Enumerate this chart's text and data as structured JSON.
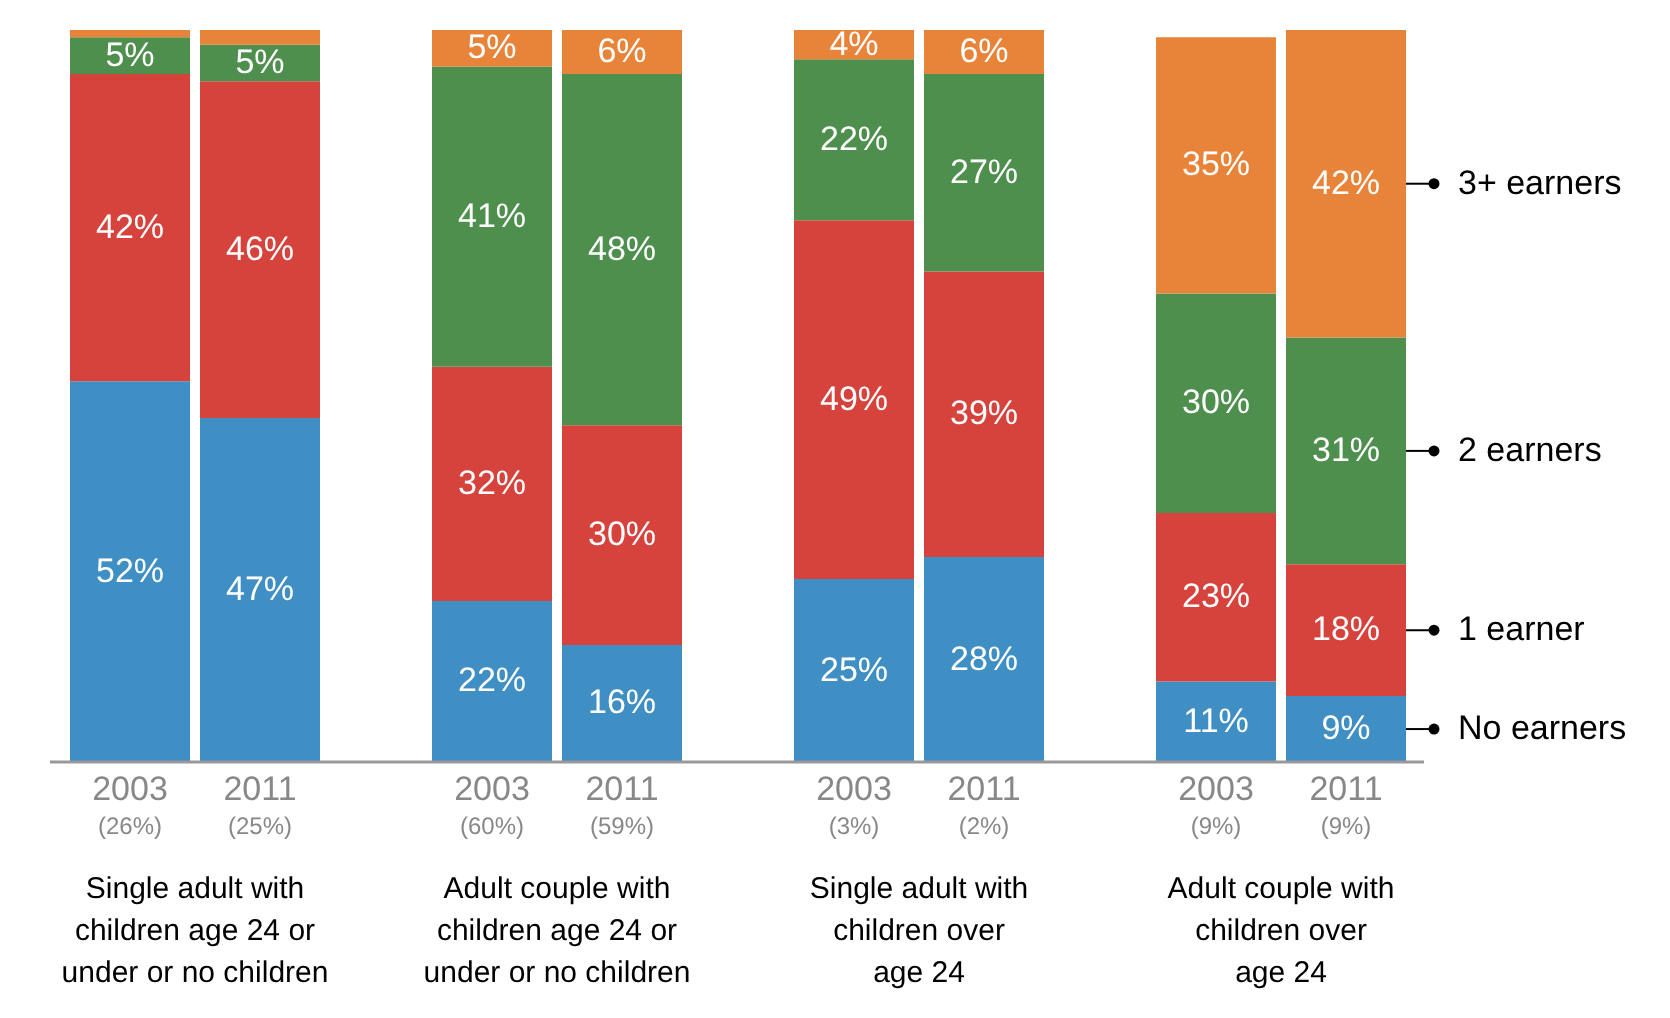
{
  "chart_data": {
    "type": "bar",
    "stacked": true,
    "categories": [
      "2003\n(26%)",
      "2011\n(25%)",
      "2003\n(60%)",
      "2011\n(59%)",
      "2003\n(3%)",
      "2011\n(2%)",
      "2003\n(9%)",
      "2011\n(9%)"
    ],
    "series": [
      {
        "name": "No earners",
        "color": "#3f8fc4",
        "values": [
          52,
          47,
          22,
          16,
          25,
          28,
          11,
          9
        ],
        "value_labels": [
          "52%",
          "47%",
          "22%",
          "16%",
          "25%",
          "28%",
          "11%",
          "9%"
        ]
      },
      {
        "name": "1 earner",
        "color": "#d6433d",
        "values": [
          42,
          46,
          32,
          30,
          49,
          39,
          23,
          18
        ],
        "value_labels": [
          "42%",
          "46%",
          "32%",
          "30%",
          "49%",
          "39%",
          "23%",
          "18%"
        ]
      },
      {
        "name": "2 earners",
        "color": "#4e8f4e",
        "values": [
          5,
          5,
          41,
          48,
          22,
          27,
          30,
          31
        ],
        "value_labels": [
          "5%",
          "5%",
          "41%",
          "48%",
          "22%",
          "27%",
          "30%",
          "31%"
        ]
      },
      {
        "name": "3+ earners",
        "color": "#e8843a",
        "values": [
          1,
          2,
          5,
          6,
          4,
          6,
          35,
          42
        ],
        "value_labels": [
          null,
          null,
          "5%",
          "6%",
          "4%",
          "6%",
          "35%",
          "42%"
        ]
      }
    ],
    "ylim": [
      0,
      100
    ],
    "annotations": [
      "Single adult with\nchildren age 24 or\nunder or no children",
      "Adult couple with\nchildren age 24 or\nunder or no children",
      "Single adult with\nchildren over\nage 24",
      "Adult couple with\nchildren over\nage 24"
    ]
  }
}
